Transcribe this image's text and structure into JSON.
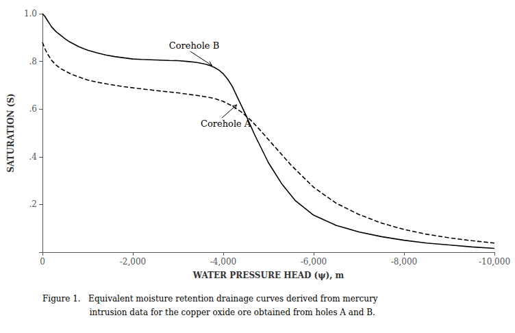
{
  "chart_data": {
    "type": "line",
    "xlabel": "WATER PRESSURE HEAD (ψ), m",
    "ylabel": "SATURATION (S)",
    "caption": [
      "Figure 1.   Equivalent moisture retention drainage curves derived from mercury",
      "                  intrusion data for the copper oxide ore obtained from holes A and B."
    ],
    "xlim": [
      0,
      -10000
    ],
    "ylim": [
      0,
      1.0
    ],
    "xticks": [
      0,
      {
        "value": -2000,
        "label": "-2,000"
      },
      {
        "value": -4000,
        "label": "-4,000"
      },
      {
        "value": -6000,
        "label": "-6,000"
      },
      {
        "value": -8000,
        "label": "-8,000"
      },
      {
        "value": -10000,
        "label": "-10,000"
      }
    ],
    "yticks": [
      {
        "value": 0.0,
        "label": ""
      },
      {
        "value": 0.2,
        "label": ".2"
      },
      {
        "value": 0.4,
        "label": ".4"
      },
      {
        "value": 0.6,
        "label": ".6"
      },
      {
        "value": 0.8,
        "label": ".8"
      },
      {
        "value": 1.0,
        "label": "1.0"
      }
    ],
    "grid": false,
    "series": [
      {
        "color": "#000000",
        "line_style": "solid",
        "x": [
          0,
          -50,
          -100,
          -150,
          -200,
          -300,
          -400,
          -500,
          -600,
          -700,
          -800,
          -900,
          -1000,
          -1200,
          -1400,
          -1600,
          -1800,
          -2000,
          -2200,
          -2500,
          -2800,
          -3000,
          -3200,
          -3400,
          -3600,
          -3700,
          -3800,
          -3900,
          -4000,
          -4100,
          -4200,
          -4300,
          -4500,
          -4700,
          -5000,
          -5300,
          -5600,
          -6000,
          -6500,
          -7000,
          -7500,
          -8000,
          -8500,
          -9000,
          -9500,
          -10000
        ],
        "values": [
          1.0,
          0.99,
          0.975,
          0.96,
          0.945,
          0.925,
          0.91,
          0.895,
          0.882,
          0.872,
          0.862,
          0.854,
          0.847,
          0.836,
          0.827,
          0.82,
          0.815,
          0.81,
          0.808,
          0.806,
          0.804,
          0.803,
          0.8,
          0.796,
          0.789,
          0.783,
          0.775,
          0.764,
          0.748,
          0.725,
          0.695,
          0.655,
          0.575,
          0.49,
          0.375,
          0.285,
          0.215,
          0.155,
          0.112,
          0.085,
          0.065,
          0.05,
          0.038,
          0.03,
          0.022,
          0.016
        ]
      },
      {
        "color": "#000000",
        "line_style": "dashed",
        "x": [
          0,
          -50,
          -100,
          -200,
          -300,
          -400,
          -500,
          -600,
          -700,
          -800,
          -1000,
          -1200,
          -1500,
          -1800,
          -2100,
          -2500,
          -3000,
          -3500,
          -3800,
          -4000,
          -4200,
          -4400,
          -4600,
          -4800,
          -5000,
          -5500,
          -6000,
          -6500,
          -7000,
          -7500,
          -8000,
          -8500,
          -9000,
          -9500,
          -10000
        ],
        "values": [
          0.88,
          0.855,
          0.835,
          0.805,
          0.785,
          0.77,
          0.76,
          0.75,
          0.742,
          0.735,
          0.722,
          0.713,
          0.703,
          0.694,
          0.687,
          0.678,
          0.668,
          0.655,
          0.645,
          0.632,
          0.613,
          0.588,
          0.555,
          0.515,
          0.472,
          0.365,
          0.272,
          0.205,
          0.158,
          0.122,
          0.095,
          0.075,
          0.06,
          0.048,
          0.038
        ]
      }
    ],
    "annotations": [
      {
        "text": "Corehole B",
        "xy": [
          -3750,
          0.783
        ],
        "xytext": [
          -2800,
          0.865
        ]
      },
      {
        "text": "Corehole A",
        "xy": [
          -4300,
          0.618
        ],
        "xytext": [
          -3500,
          0.54
        ]
      }
    ]
  }
}
